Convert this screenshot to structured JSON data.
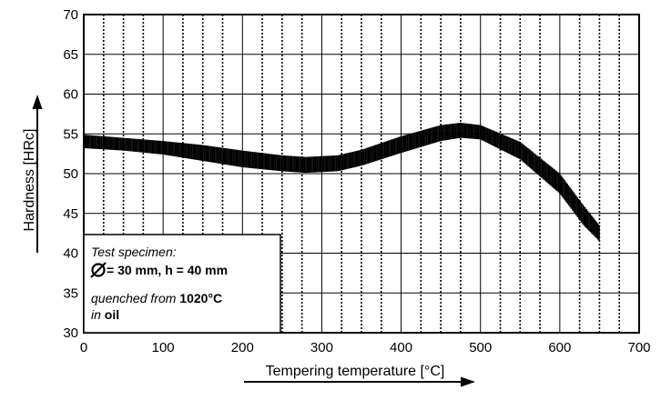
{
  "chart_data": {
    "type": "area",
    "title": "",
    "xlabel": "Tempering temperature [°C]",
    "ylabel": "Hardness [HRc]",
    "xlim": [
      0,
      700
    ],
    "ylim": [
      30,
      70
    ],
    "x_ticks": [
      0,
      100,
      200,
      300,
      400,
      500,
      600,
      700
    ],
    "y_ticks": [
      30,
      35,
      40,
      45,
      50,
      55,
      60,
      65,
      70
    ],
    "grid": true,
    "grid_minor_x": 25,
    "series": [
      {
        "fill": "hatched",
        "x": [
          0,
          50,
          100,
          150,
          200,
          250,
          280,
          320,
          350,
          400,
          450,
          475,
          500,
          550,
          600,
          630,
          650
        ],
        "upper": [
          54.9,
          54.5,
          54.1,
          53.6,
          52.9,
          52.3,
          52.1,
          52.3,
          53.0,
          54.7,
          56.1,
          56.4,
          56.1,
          54.0,
          50.0,
          46.0,
          43.5
        ],
        "lower": [
          53.2,
          52.9,
          52.4,
          51.6,
          50.8,
          50.3,
          50.1,
          50.3,
          51.0,
          52.6,
          54.1,
          54.5,
          54.3,
          51.8,
          47.5,
          43.5,
          41.5
        ]
      }
    ]
  },
  "note": {
    "line1": "Test specimen:",
    "line2": "= 30 mm, h = 40 mm",
    "line3_pre": "quenched from ",
    "line3_bold": "1020°C",
    "line4_pre": "in ",
    "line4_bold": "oil"
  },
  "colors": {
    "ink": "#000000",
    "grid": "#000000",
    "background": "#ffffff"
  }
}
